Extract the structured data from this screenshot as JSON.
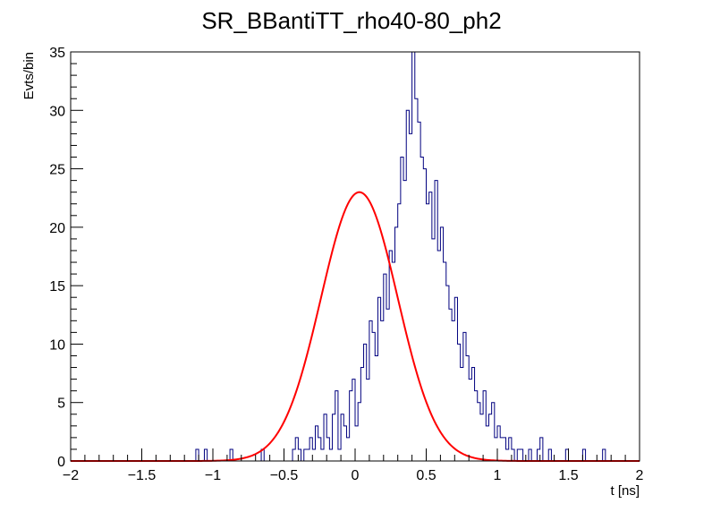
{
  "chart_data": {
    "type": "histogram",
    "title": "SR_BBantiTT_rho40-80_ph2",
    "xlabel": "t [ns]",
    "ylabel": "Evts/bin",
    "xlim": [
      -2,
      2
    ],
    "ylim": [
      0,
      35
    ],
    "x_ticks": [
      "−2",
      "−1.5",
      "−1",
      "−0.5",
      "0",
      "0.5",
      "1",
      "1.5",
      "2"
    ],
    "y_ticks": [
      "0",
      "5",
      "10",
      "15",
      "20",
      "25",
      "30",
      "35"
    ],
    "grid": false,
    "legend": "none",
    "bin_width": 0.02,
    "series": [
      {
        "kind": "histogram",
        "color": "#00007f",
        "x_start": -2.0,
        "values": [
          0,
          0,
          0,
          0,
          0,
          0,
          0,
          0,
          0,
          0,
          0,
          0,
          0,
          0,
          0,
          0,
          0,
          0,
          0,
          0,
          0,
          0,
          0,
          0,
          0,
          0,
          0,
          0,
          0,
          0,
          0,
          0,
          0,
          0,
          0,
          0,
          0,
          0,
          0,
          0,
          0,
          0,
          0,
          0,
          1,
          0,
          0,
          1,
          0,
          0,
          0,
          0,
          0,
          0,
          0,
          0,
          1,
          0,
          0,
          0,
          0,
          0,
          0,
          0,
          0,
          0,
          0,
          1,
          0,
          0,
          0,
          0,
          0,
          0,
          0,
          0,
          0,
          0,
          1,
          2,
          1,
          0,
          1,
          1,
          2,
          1,
          3,
          2,
          1,
          4,
          2,
          1,
          4,
          6,
          1,
          4,
          3,
          2,
          6,
          7,
          3,
          5,
          8,
          10,
          7,
          12,
          11,
          9,
          14,
          12,
          16,
          13,
          18,
          17,
          20,
          22,
          26,
          24,
          30,
          28,
          35,
          31,
          29,
          26,
          25,
          22,
          23,
          19,
          24,
          18,
          20,
          17,
          15,
          13,
          12,
          14,
          10,
          8,
          11,
          9,
          7,
          8,
          6,
          5,
          4,
          6,
          3,
          4,
          5,
          2,
          3,
          2,
          2,
          1,
          2,
          1,
          0,
          1,
          1,
          0,
          0,
          1,
          0,
          0,
          1,
          2,
          0,
          0,
          1,
          0,
          0,
          0,
          0,
          0,
          1,
          0,
          0,
          0,
          0,
          0,
          1,
          0,
          0,
          0,
          0,
          0,
          0,
          1,
          0,
          0,
          0,
          0,
          0,
          0,
          0,
          0,
          0,
          0,
          0,
          0
        ]
      },
      {
        "kind": "fit",
        "color": "#ff0000",
        "function": "gaussian",
        "amplitude": 23.0,
        "mean": 0.03,
        "sigma": 0.27
      }
    ]
  }
}
